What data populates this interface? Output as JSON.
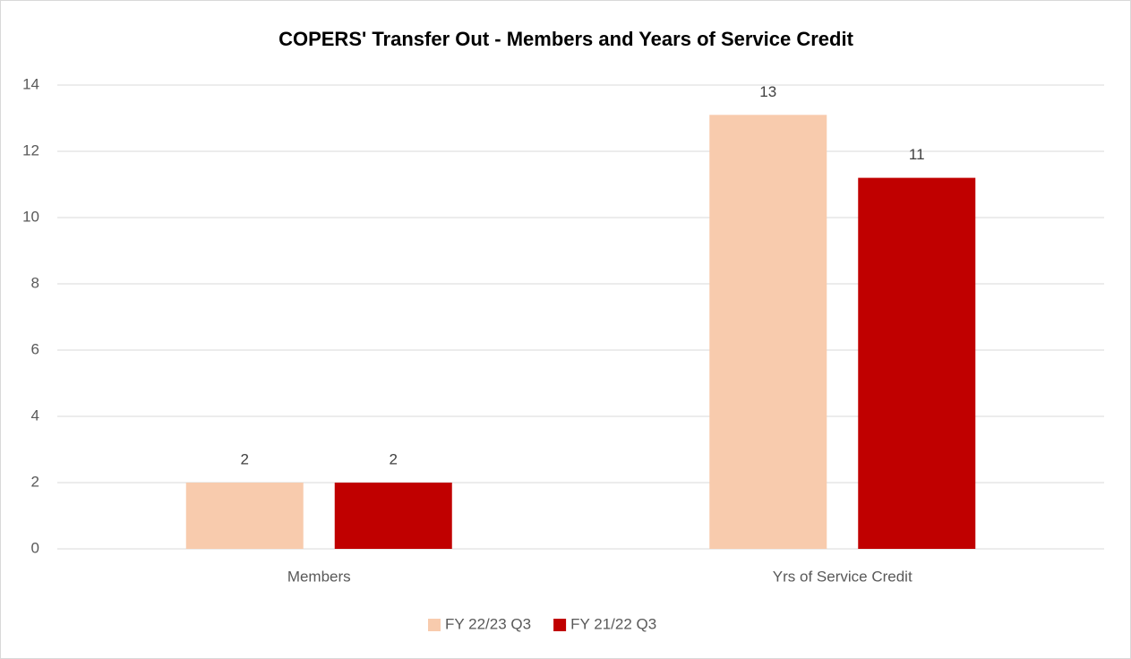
{
  "chart_data": {
    "type": "bar",
    "title": "COPERS' Transfer Out - Members and Years of Service Credit",
    "categories": [
      "Members",
      "Yrs of Service Credit"
    ],
    "series": [
      {
        "name": "FY 22/23 Q3",
        "color": "#f8cbad",
        "values": [
          2,
          13.1
        ],
        "value_labels": [
          "2",
          "13"
        ]
      },
      {
        "name": "FY 21/22 Q3",
        "color": "#c00000",
        "values": [
          2,
          11.2
        ],
        "value_labels": [
          "2",
          "11"
        ]
      }
    ],
    "ylim": [
      0,
      14
    ],
    "yticks": [
      0,
      2,
      4,
      6,
      8,
      10,
      12,
      14
    ],
    "grid": true,
    "legend": "bottom"
  }
}
